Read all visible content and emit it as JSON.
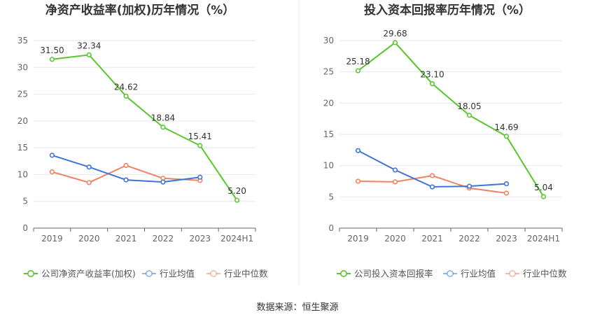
{
  "source_label": "数据来源：恒生聚源",
  "chart_data": [
    {
      "type": "line",
      "title": "净资产收益率(加权)历年情况（%）",
      "categories": [
        "2019",
        "2020",
        "2021",
        "2022",
        "2023",
        "2024H1"
      ],
      "ylim": [
        0,
        35
      ],
      "yticks": [
        0,
        5,
        10,
        15,
        20,
        25,
        30,
        35
      ],
      "grid": true,
      "legend_position": "bottom",
      "series": [
        {
          "name": "公司净资产收益率(加权)",
          "color": "#5ac62f",
          "show_labels": true,
          "values": [
            31.5,
            32.34,
            24.62,
            18.84,
            15.41,
            5.2
          ],
          "labels": [
            "31.50",
            "32.34",
            "24.62",
            "18.84",
            "15.41",
            "5.20"
          ]
        },
        {
          "name": "行业均值",
          "color": "#3d74d9",
          "show_labels": false,
          "values": [
            13.6,
            11.4,
            9.0,
            8.6,
            9.5,
            null
          ]
        },
        {
          "name": "行业中位数",
          "color": "#f0825f",
          "show_labels": false,
          "values": [
            10.5,
            8.5,
            11.7,
            9.3,
            8.9,
            null
          ]
        }
      ]
    },
    {
      "type": "line",
      "title": "投入资本回报率历年情况（%）",
      "categories": [
        "2019",
        "2020",
        "2021",
        "2022",
        "2023",
        "2024H1"
      ],
      "ylim": [
        0,
        30
      ],
      "yticks": [
        0,
        5,
        10,
        15,
        20,
        25,
        30
      ],
      "grid": true,
      "legend_position": "bottom",
      "series": [
        {
          "name": "公司投入资本回报率",
          "color": "#5ac62f",
          "show_labels": true,
          "values": [
            25.18,
            29.68,
            23.1,
            18.05,
            14.69,
            5.04
          ],
          "labels": [
            "25.18",
            "29.68",
            "23.10",
            "18.05",
            "14.69",
            "5.04"
          ]
        },
        {
          "name": "行业均值",
          "color": "#3d74d9",
          "show_labels": false,
          "values": [
            12.4,
            9.3,
            6.6,
            6.7,
            7.1,
            null
          ]
        },
        {
          "name": "行业中位数",
          "color": "#f0825f",
          "show_labels": false,
          "values": [
            7.5,
            7.4,
            8.4,
            6.4,
            5.6,
            null
          ]
        }
      ]
    }
  ]
}
